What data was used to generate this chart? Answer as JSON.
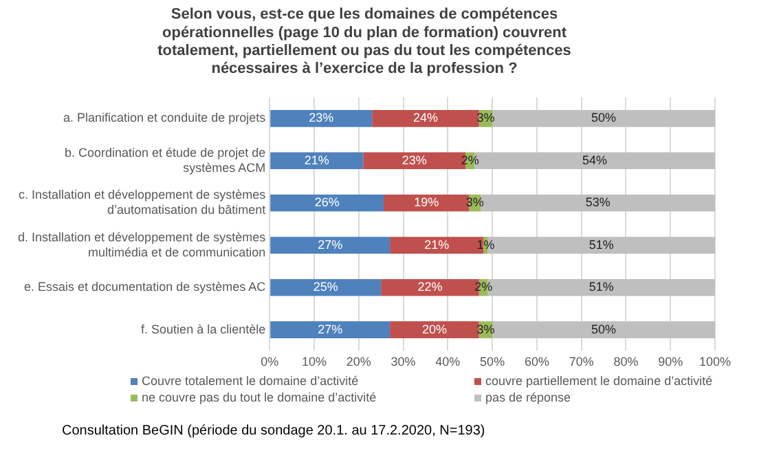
{
  "chart_data": {
    "type": "bar",
    "orientation": "horizontal",
    "stacked": true,
    "title": "Selon vous, est-ce que les domaines de compétences opérationnelles (page 10 du plan de formation) couvrent totalement, partiellement ou pas du tout les compétences nécessaires à l’exercice de la profession ?",
    "categories": [
      "a. Planification et conduite de projets",
      "b. Coordination et étude de projet de systèmes ACM",
      "c. Installation et développement de systèmes d’automatisation du bâtiment",
      "d. Installation et développement de systèmes multimédia et de communication",
      "e. Essais et documentation de systèmes AC",
      "f. Soutien à la clientèle"
    ],
    "series": [
      {
        "name": "Couvre totalement le domaine d’activité",
        "color": "#4f81bd",
        "values": [
          23,
          21,
          25.6,
          27,
          25,
          27
        ],
        "value_labels": [
          "23%",
          "21%",
          "26%",
          "27%",
          "25%",
          "27%"
        ]
      },
      {
        "name": "couvre partiellement le domaine d’activité",
        "color": "#c0504d",
        "values": [
          24,
          23,
          19.2,
          21,
          22,
          20
        ],
        "value_labels": [
          "24%",
          "23%",
          "19%",
          "21%",
          "22%",
          "20%"
        ]
      },
      {
        "name": "ne couvre pas du tout le domaine d’activité",
        "color": "#9bbb59",
        "values": [
          3,
          2,
          2.6,
          1,
          2,
          3
        ],
        "value_labels": [
          "3%",
          "2%",
          "3%",
          "1%",
          "2%",
          "3%"
        ]
      },
      {
        "name": "pas de réponse",
        "color": "#bfbfbf",
        "values": [
          50,
          54,
          52.6,
          51,
          51,
          50
        ],
        "value_labels": [
          "50%",
          "54%",
          "53%",
          "51%",
          "51%",
          "50%"
        ]
      }
    ],
    "xlim": [
      0,
      100
    ],
    "xticks": [
      {
        "value": 0,
        "label": "0%"
      },
      {
        "value": 10,
        "label": "10%"
      },
      {
        "value": 20,
        "label": "20%"
      },
      {
        "value": 30,
        "label": "30%"
      },
      {
        "value": 40,
        "label": "40%"
      },
      {
        "value": 50,
        "label": "50%"
      },
      {
        "value": 60,
        "label": "60%"
      },
      {
        "value": 70,
        "label": "70%"
      },
      {
        "value": 80,
        "label": "80%"
      },
      {
        "value": 90,
        "label": "90%"
      },
      {
        "value": 100,
        "label": "100%"
      }
    ],
    "grid": "x",
    "legend": "bottom",
    "annotations": [
      "Consultation BeGIN (période du sondage 20.1. au 17.2.2020, N=193)"
    ]
  }
}
